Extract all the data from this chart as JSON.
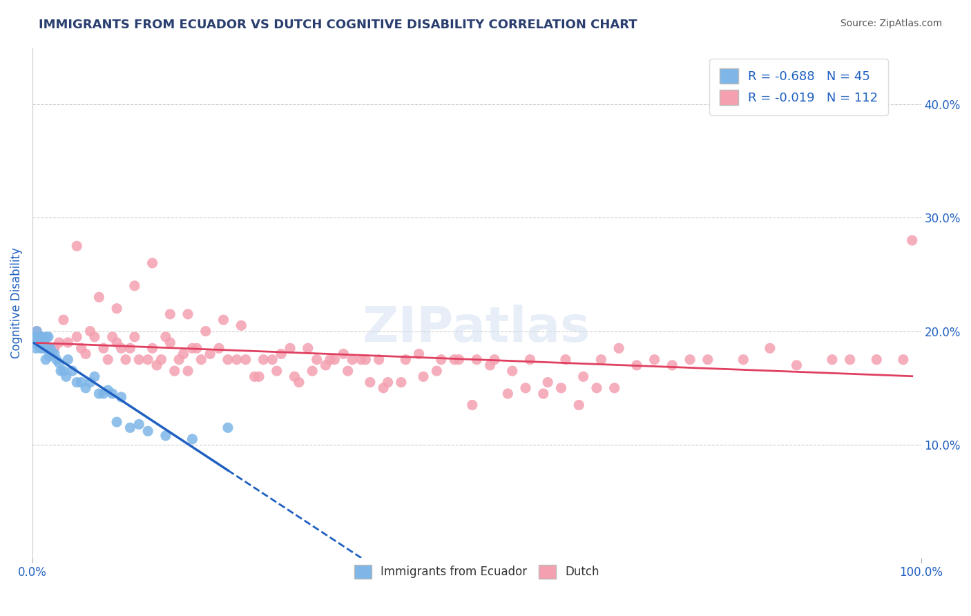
{
  "title": "IMMIGRANTS FROM ECUADOR VS DUTCH COGNITIVE DISABILITY CORRELATION CHART",
  "source": "Source: ZipAtlas.com",
  "ylabel": "Cognitive Disability",
  "legend_label1": "Immigrants from Ecuador",
  "legend_label2": "Dutch",
  "r1": -0.688,
  "n1": 45,
  "r2": -0.019,
  "n2": 112,
  "color_blue": "#7EB6E8",
  "color_pink": "#F4A0B0",
  "color_blue_line": "#2060C0",
  "color_pink_line": "#E04060",
  "title_color": "#2a3f6f",
  "source_color": "#555555",
  "axis_label_color": "#2060C0",
  "legend_text_color": "#2060C0",
  "watermark": "ZIPatlas",
  "xlim": [
    0.0,
    1.0
  ],
  "ylim": [
    0.0,
    0.45
  ],
  "yticks": [
    0.1,
    0.2,
    0.3,
    0.4
  ],
  "ecuador_x": [
    0.002,
    0.003,
    0.004,
    0.005,
    0.006,
    0.007,
    0.008,
    0.009,
    0.01,
    0.011,
    0.012,
    0.013,
    0.014,
    0.015,
    0.016,
    0.017,
    0.018,
    0.019,
    0.02,
    0.022,
    0.025,
    0.027,
    0.03,
    0.032,
    0.035,
    0.038,
    0.04,
    0.045,
    0.05,
    0.055,
    0.06,
    0.065,
    0.07,
    0.075,
    0.08,
    0.085,
    0.09,
    0.095,
    0.1,
    0.11,
    0.12,
    0.13,
    0.15,
    0.18,
    0.22
  ],
  "ecuador_y": [
    0.19,
    0.195,
    0.185,
    0.2,
    0.195,
    0.188,
    0.192,
    0.185,
    0.195,
    0.195,
    0.185,
    0.19,
    0.185,
    0.175,
    0.195,
    0.185,
    0.195,
    0.178,
    0.185,
    0.182,
    0.18,
    0.175,
    0.172,
    0.165,
    0.165,
    0.16,
    0.175,
    0.165,
    0.155,
    0.155,
    0.15,
    0.155,
    0.16,
    0.145,
    0.145,
    0.148,
    0.145,
    0.12,
    0.142,
    0.115,
    0.118,
    0.112,
    0.108,
    0.105,
    0.115
  ],
  "dutch_x": [
    0.005,
    0.01,
    0.02,
    0.025,
    0.03,
    0.035,
    0.04,
    0.05,
    0.055,
    0.06,
    0.065,
    0.07,
    0.08,
    0.085,
    0.09,
    0.095,
    0.1,
    0.105,
    0.11,
    0.115,
    0.12,
    0.13,
    0.135,
    0.14,
    0.145,
    0.15,
    0.155,
    0.16,
    0.165,
    0.17,
    0.175,
    0.18,
    0.185,
    0.19,
    0.2,
    0.21,
    0.22,
    0.23,
    0.24,
    0.25,
    0.26,
    0.27,
    0.28,
    0.29,
    0.3,
    0.31,
    0.32,
    0.33,
    0.34,
    0.35,
    0.36,
    0.37,
    0.38,
    0.39,
    0.4,
    0.42,
    0.44,
    0.46,
    0.48,
    0.5,
    0.52,
    0.54,
    0.56,
    0.58,
    0.6,
    0.62,
    0.64,
    0.66,
    0.68,
    0.7,
    0.72,
    0.74,
    0.76,
    0.8,
    0.83,
    0.86,
    0.9,
    0.92,
    0.95,
    0.98,
    0.05,
    0.075,
    0.095,
    0.115,
    0.135,
    0.155,
    0.175,
    0.195,
    0.215,
    0.235,
    0.255,
    0.275,
    0.295,
    0.315,
    0.335,
    0.355,
    0.375,
    0.395,
    0.415,
    0.435,
    0.455,
    0.475,
    0.495,
    0.515,
    0.535,
    0.555,
    0.575,
    0.595,
    0.615,
    0.635,
    0.655,
    0.99
  ],
  "dutch_y": [
    0.2,
    0.195,
    0.185,
    0.185,
    0.19,
    0.21,
    0.19,
    0.195,
    0.185,
    0.18,
    0.2,
    0.195,
    0.185,
    0.175,
    0.195,
    0.19,
    0.185,
    0.175,
    0.185,
    0.195,
    0.175,
    0.175,
    0.185,
    0.17,
    0.175,
    0.195,
    0.19,
    0.165,
    0.175,
    0.18,
    0.165,
    0.185,
    0.185,
    0.175,
    0.18,
    0.185,
    0.175,
    0.175,
    0.175,
    0.16,
    0.175,
    0.175,
    0.18,
    0.185,
    0.155,
    0.185,
    0.175,
    0.17,
    0.175,
    0.18,
    0.175,
    0.175,
    0.155,
    0.175,
    0.155,
    0.175,
    0.16,
    0.175,
    0.175,
    0.175,
    0.175,
    0.165,
    0.175,
    0.155,
    0.175,
    0.16,
    0.175,
    0.185,
    0.17,
    0.175,
    0.17,
    0.175,
    0.175,
    0.175,
    0.185,
    0.17,
    0.175,
    0.175,
    0.175,
    0.175,
    0.275,
    0.23,
    0.22,
    0.24,
    0.26,
    0.215,
    0.215,
    0.2,
    0.21,
    0.205,
    0.16,
    0.165,
    0.16,
    0.165,
    0.175,
    0.165,
    0.175,
    0.15,
    0.155,
    0.18,
    0.165,
    0.175,
    0.135,
    0.17,
    0.145,
    0.15,
    0.145,
    0.15,
    0.135,
    0.15,
    0.15,
    0.28
  ]
}
